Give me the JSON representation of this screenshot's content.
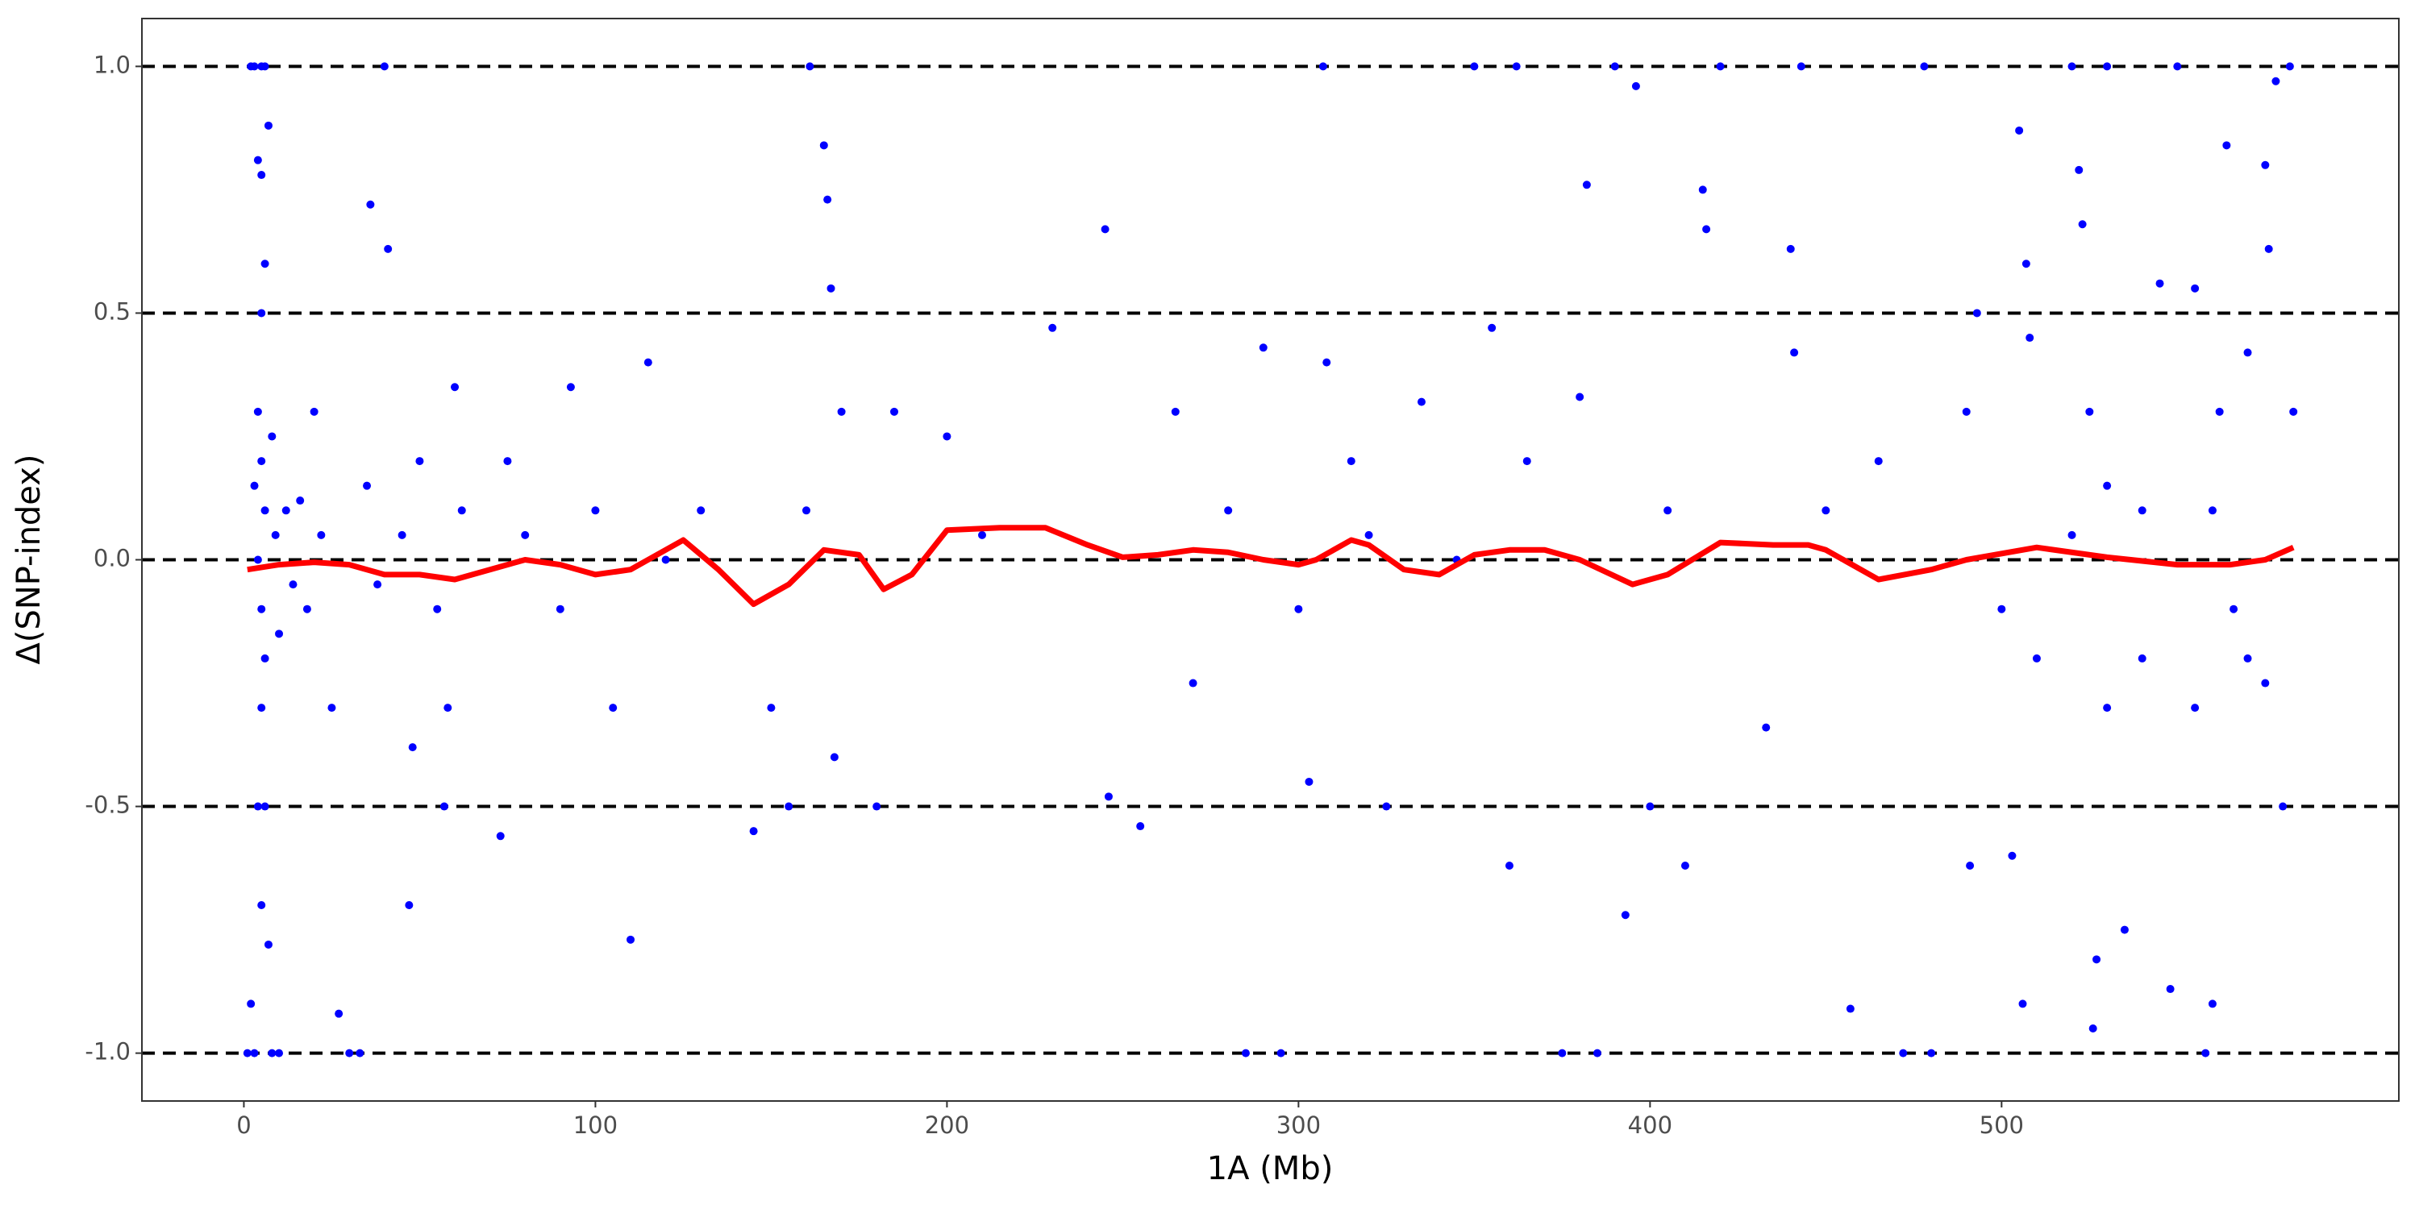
{
  "chart_data": {
    "type": "scatter",
    "xlabel": "1A (Mb)",
    "ylabel": "Δ(SNP-index)",
    "xlim": [
      -29,
      613
    ],
    "ylim": [
      -1.097,
      1.097
    ],
    "xticks": [
      0,
      100,
      200,
      300,
      400,
      500
    ],
    "yticks": [
      {
        "value": -1.0,
        "label": "-1.0"
      },
      -0.5,
      {
        "value": 0.0,
        "label": "0.0"
      },
      0.5,
      {
        "value": 1.0,
        "label": "1.0"
      }
    ],
    "grid": true,
    "series": [
      {
        "type": "scatter",
        "color": "#0000ff",
        "x": [
          2,
          3,
          5,
          6,
          4,
          5,
          6,
          5,
          4,
          5,
          6,
          4,
          5,
          6,
          5,
          4,
          6,
          5,
          7,
          2,
          1,
          3,
          8,
          10,
          7,
          3,
          8,
          9,
          10,
          12,
          14,
          16,
          18,
          20,
          22,
          25,
          27,
          30,
          33,
          35,
          36,
          38,
          40,
          41,
          45,
          47,
          48,
          50,
          55,
          57,
          58,
          60,
          62,
          73,
          75,
          80,
          90,
          93,
          100,
          105,
          110,
          115,
          120,
          130,
          145,
          150,
          155,
          160,
          161,
          165,
          166,
          167,
          168,
          170,
          180,
          185,
          200,
          210,
          230,
          245,
          246,
          255,
          265,
          270,
          280,
          285,
          290,
          295,
          300,
          303,
          307,
          308,
          315,
          320,
          325,
          335,
          345,
          350,
          355,
          360,
          362,
          365,
          375,
          380,
          382,
          385,
          390,
          393,
          396,
          400,
          405,
          410,
          415,
          416,
          420,
          433,
          440,
          441,
          443,
          450,
          457,
          465,
          472,
          478,
          480,
          490,
          491,
          493,
          500,
          503,
          505,
          506,
          507,
          508,
          520,
          522,
          523,
          525,
          526,
          527,
          530,
          535,
          540,
          545,
          548,
          550,
          555,
          558,
          560,
          562,
          564,
          566,
          570,
          575,
          576,
          578,
          580,
          582,
          583,
          570,
          530,
          540,
          555,
          520,
          510,
          530,
          560,
          575
        ],
        "values": [
          1,
          1,
          1,
          1,
          0.81,
          0.78,
          0.6,
          0.5,
          0.3,
          0.2,
          0.1,
          0,
          -0.1,
          -0.2,
          -0.3,
          -0.5,
          -0.5,
          -0.7,
          -0.78,
          -0.9,
          -1,
          -1,
          -1,
          -1,
          0.88,
          0.15,
          0.25,
          0.05,
          -0.15,
          0.1,
          -0.05,
          0.12,
          -0.1,
          0.3,
          0.05,
          -0.3,
          -0.92,
          -1,
          -1,
          0.15,
          0.72,
          -0.05,
          1,
          0.63,
          0.05,
          -0.7,
          -0.38,
          0.2,
          -0.1,
          -0.5,
          -0.3,
          0.35,
          0.1,
          -0.56,
          0.2,
          0.05,
          -0.1,
          0.35,
          0.1,
          -0.3,
          -0.77,
          0.4,
          0,
          0.1,
          -0.55,
          -0.3,
          -0.5,
          0.1,
          1,
          0.84,
          0.73,
          0.55,
          -0.4,
          0.3,
          -0.5,
          0.3,
          0.25,
          0.05,
          0.47,
          0.67,
          -0.48,
          -0.54,
          0.3,
          -0.25,
          0.1,
          -1,
          0.43,
          -1,
          -0.1,
          -0.45,
          1,
          0.4,
          0.2,
          0.05,
          -0.5,
          0.32,
          0,
          1,
          0.47,
          -0.62,
          1,
          0.2,
          -1,
          0.33,
          0.76,
          -1,
          1,
          -0.72,
          0.96,
          -0.5,
          0.1,
          -0.62,
          0.75,
          0.67,
          1,
          -0.34,
          0.63,
          0.42,
          1,
          0.1,
          -0.91,
          0.2,
          -1,
          1,
          -1,
          0.3,
          -0.62,
          0.5,
          -0.1,
          -0.6,
          0.87,
          -0.9,
          0.6,
          0.45,
          1,
          0.79,
          0.68,
          0.3,
          -0.95,
          -0.81,
          1,
          -0.75,
          0.1,
          0.56,
          -0.87,
          1,
          0.55,
          -1,
          -0.9,
          0.3,
          0.84,
          -0.1,
          0.42,
          0.8,
          0.63,
          0.97,
          -0.5,
          1,
          0.3,
          -0.2,
          -0.3,
          -0.2,
          -0.3,
          0.05,
          -0.2,
          0.15,
          0.1,
          -0.25
        ]
      },
      {
        "type": "line",
        "color": "#ff0000",
        "x": [
          1,
          10,
          20,
          30,
          40,
          50,
          60,
          70,
          80,
          90,
          100,
          110,
          125,
          135,
          145,
          155,
          165,
          175,
          182,
          190,
          200,
          215,
          228,
          240,
          250,
          260,
          270,
          280,
          290,
          300,
          305,
          315,
          320,
          330,
          340,
          350,
          360,
          370,
          380,
          395,
          405,
          420,
          435,
          445,
          450,
          465,
          480,
          490,
          510,
          530,
          550,
          565,
          575,
          583
        ],
        "values": [
          -0.02,
          -0.01,
          -0.005,
          -0.01,
          -0.03,
          -0.03,
          -0.04,
          -0.02,
          0,
          -0.01,
          -0.03,
          -0.02,
          0.04,
          -0.02,
          -0.09,
          -0.05,
          0.02,
          0.01,
          -0.06,
          -0.03,
          0.06,
          0.065,
          0.065,
          0.03,
          0.005,
          0.01,
          0.02,
          0.015,
          0,
          -0.01,
          0,
          0.04,
          0.03,
          -0.02,
          -0.03,
          0.01,
          0.02,
          0.02,
          0,
          -0.05,
          -0.03,
          0.035,
          0.03,
          0.03,
          0.02,
          -0.04,
          -0.02,
          0,
          0.025,
          0.005,
          -0.01,
          -0.01,
          0,
          0.025
        ]
      }
    ]
  }
}
